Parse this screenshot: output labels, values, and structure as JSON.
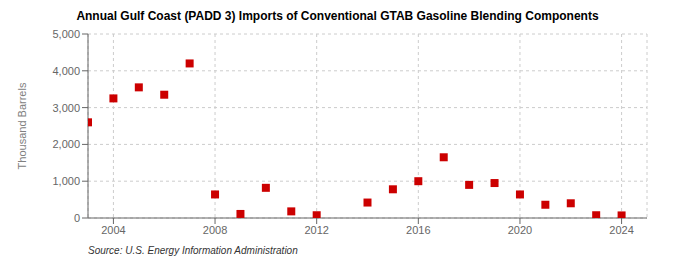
{
  "chart_data": {
    "type": "scatter",
    "title": "Annual Gulf Coast (PADD 3) Imports of Conventional GTAB Gasoline Blending Components",
    "y_label": "Thousand Barrels",
    "annotations": [
      "Source: U.S. Energy Information Administration"
    ],
    "x": [
      2003,
      2004,
      2005,
      2006,
      2007,
      2008,
      2009,
      2010,
      2011,
      2012,
      2014,
      2015,
      2016,
      2017,
      2018,
      2019,
      2020,
      2021,
      2022,
      2023,
      2024
    ],
    "values": [
      2600,
      3250,
      3550,
      3350,
      4200,
      640,
      110,
      820,
      180,
      75,
      420,
      780,
      1000,
      1650,
      900,
      950,
      640,
      360,
      400,
      75,
      70
    ],
    "color": "#cc0000",
    "marker": "square",
    "xlim": [
      2003.0,
      2025.0
    ],
    "xticks": [
      2004,
      2008,
      2012,
      2016,
      2020,
      2024
    ],
    "ylim": [
      0,
      5000
    ],
    "yticks": [
      0,
      {
        "value": 1000,
        "label": "1,000"
      },
      {
        "value": 2000,
        "label": "2,000"
      },
      {
        "value": 3000,
        "label": "3,000"
      },
      {
        "value": 4000,
        "label": "4,000"
      },
      {
        "value": 5000,
        "label": "5,000"
      }
    ],
    "grid": true
  }
}
